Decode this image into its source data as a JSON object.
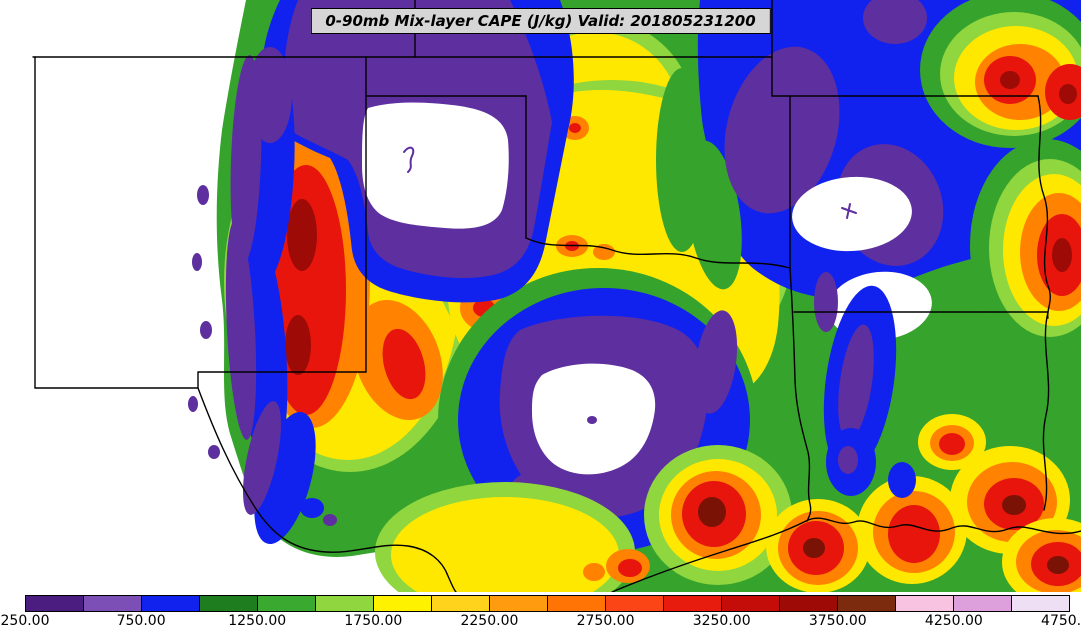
{
  "title": "0-90mb Mix-layer CAPE (J/kg) Valid: 201805231200",
  "colors": {
    "white": "#ffffff",
    "purple": "#5e2f9f",
    "blue": "#1122ee",
    "green": "#36a32c",
    "light_green": "#8fd63f",
    "yellow": "#ffe800",
    "orange": "#ff8300",
    "red": "#e8150d",
    "dark_red": "#9e0b06",
    "maroon": "#7a1205",
    "border": "#000000",
    "title_bg": "#d6d6d6"
  },
  "colorbar": {
    "ticks": [
      "250.00",
      "750.00",
      "1250.00",
      "1750.00",
      "2250.00",
      "2750.00",
      "3250.00",
      "3750.00",
      "4250.00",
      "4750.00"
    ],
    "segments": [
      "#4c1d80",
      "#7b4fb5",
      "#1122ee",
      "#1e7d1e",
      "#3aa92f",
      "#8fd63f",
      "#fff200",
      "#ffd21c",
      "#ff9b0f",
      "#ff7405",
      "#fb4516",
      "#e81c0e",
      "#c40d09",
      "#9e0b06",
      "#7c2b0e",
      "#f7c3e0",
      "#dda0dd",
      "#efdff5"
    ]
  }
}
